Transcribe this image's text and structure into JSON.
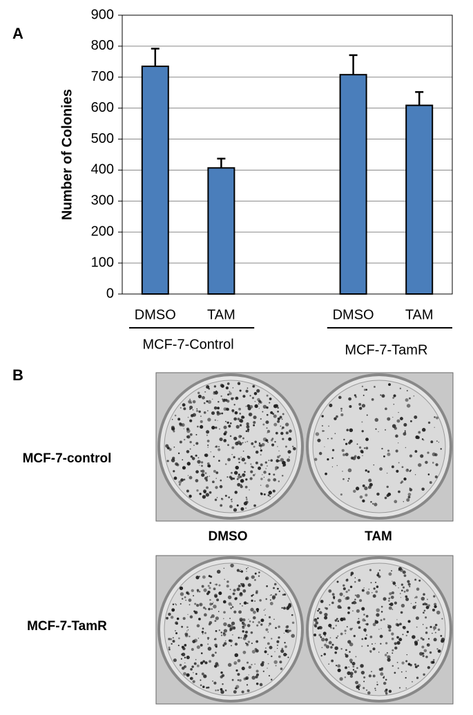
{
  "chart_data": {
    "type": "bar",
    "panel_label": "A",
    "ylabel": "Number of Colonies",
    "categories": [
      "DMSO",
      "TAM",
      null,
      "DMSO",
      "TAM"
    ],
    "values": [
      735,
      407,
      null,
      708,
      609
    ],
    "errors": [
      57,
      30,
      null,
      63,
      43
    ],
    "groups": [
      "MCF-7-Control",
      "MCF-7-TamR"
    ],
    "color": "#4a7ebb",
    "ylim": [
      0,
      900
    ],
    "yticks": [
      0,
      100,
      200,
      300,
      400,
      500,
      600,
      700,
      800,
      900
    ],
    "grid": true
  },
  "panel_b": {
    "panel_label": "B",
    "rows": [
      "MCF-7-control",
      "MCF-7-TamR"
    ],
    "columns": [
      "DMSO",
      "TAM"
    ]
  }
}
